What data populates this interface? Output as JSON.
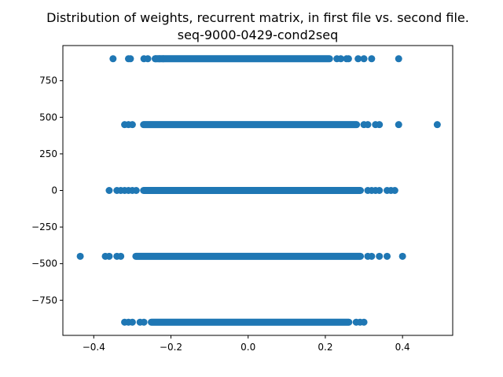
{
  "chart_data": {
    "type": "scatter",
    "title": "Distribution of weights, recurrent matrix, in first file vs. second file.",
    "subtitle": "seq-9000-0429-cond2seq",
    "xlabel": "",
    "ylabel": "",
    "xlim": [
      -0.48,
      0.53
    ],
    "ylim": [
      -990,
      990
    ],
    "grid": false,
    "legend": "none",
    "marker_color": "#1f77b4",
    "x_ticks": [
      {
        "value": -0.4,
        "label": "−0.4"
      },
      {
        "value": -0.2,
        "label": "−0.2"
      },
      {
        "value": 0.0,
        "label": "0.0"
      },
      {
        "value": 0.2,
        "label": "0.2"
      },
      {
        "value": 0.4,
        "label": "0.4"
      }
    ],
    "y_ticks": [
      {
        "value": -750,
        "label": "−750"
      },
      {
        "value": -500,
        "label": "−500"
      },
      {
        "value": -250,
        "label": "−250"
      },
      {
        "value": 0,
        "label": "0"
      },
      {
        "value": 250,
        "label": "250"
      },
      {
        "value": 500,
        "label": "500"
      },
      {
        "value": 750,
        "label": "750"
      }
    ],
    "rows": [
      {
        "y": 900,
        "dense_range": [
          -0.25,
          0.22
        ],
        "points": [
          -0.35,
          -0.31,
          -0.305,
          -0.27,
          -0.26,
          -0.24,
          -0.23,
          -0.22,
          0.23,
          0.24,
          0.255,
          0.26,
          0.285,
          0.3,
          0.32,
          0.39
        ]
      },
      {
        "y": 450,
        "dense_range": [
          -0.28,
          0.29
        ],
        "points": [
          -0.32,
          -0.31,
          -0.3,
          0.3,
          0.31,
          0.33,
          0.34,
          0.39,
          0.49
        ]
      },
      {
        "y": 0,
        "dense_range": [
          -0.28,
          0.3
        ],
        "points": [
          -0.36,
          -0.34,
          -0.33,
          -0.32,
          -0.31,
          -0.3,
          -0.29,
          0.31,
          0.32,
          0.33,
          0.34,
          0.36,
          0.37,
          0.38
        ]
      },
      {
        "y": -450,
        "dense_range": [
          -0.3,
          0.3
        ],
        "points": [
          -0.435,
          -0.37,
          -0.36,
          -0.34,
          -0.33,
          0.31,
          0.32,
          0.34,
          0.36,
          0.4
        ]
      },
      {
        "y": -900,
        "dense_range": [
          -0.26,
          0.27
        ],
        "points": [
          -0.32,
          -0.31,
          -0.3,
          -0.28,
          -0.27,
          0.28,
          0.29,
          0.3
        ]
      }
    ]
  }
}
